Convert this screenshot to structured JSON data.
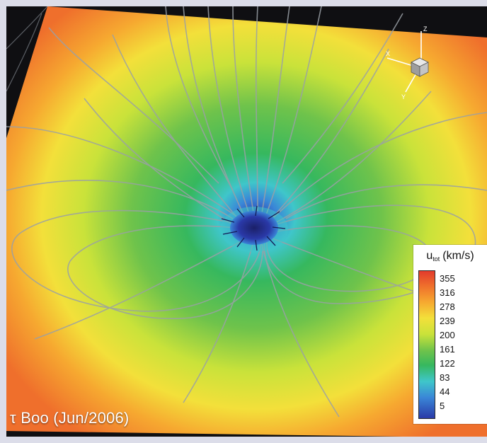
{
  "caption": "τ Boo (Jun/2006)",
  "legend": {
    "title_main": "u",
    "title_sub": "tot",
    "title_unit": "(km/s)",
    "ticks": [
      "355",
      "316",
      "278",
      "239",
      "200",
      "161",
      "122",
      "83",
      "44",
      "5"
    ],
    "colors": [
      "#e23b2c",
      "#ef6f2c",
      "#f6a830",
      "#f3e03a",
      "#c9e23a",
      "#6fc34b",
      "#36b85e",
      "#3fc6ca",
      "#3a86d7",
      "#2a39a8"
    ]
  },
  "axes_triad": {
    "x_label": "X",
    "y_label": "Y",
    "z_label": "Z"
  },
  "scene": {
    "background": "#0f0f12",
    "field_line_color": "#9aa0a6",
    "star_color": "#2a39a8"
  }
}
